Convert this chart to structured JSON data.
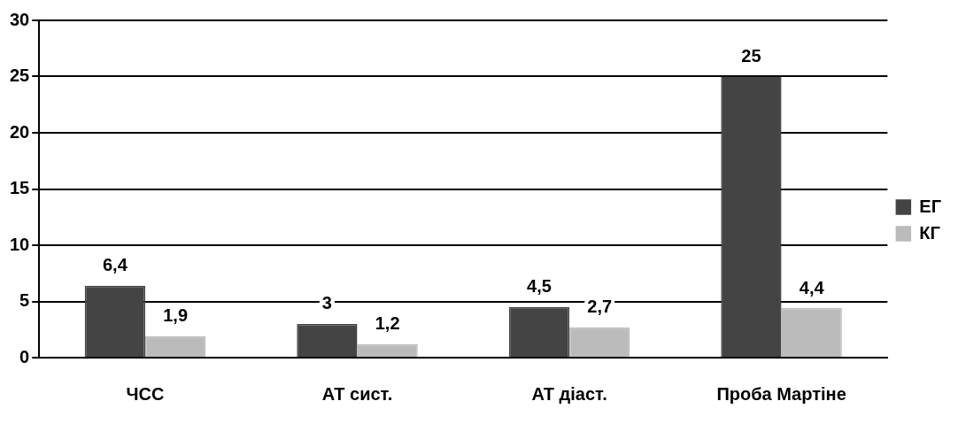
{
  "chart_data": {
    "type": "bar",
    "categories": [
      "ЧСС",
      "АТ сист.",
      "АТ діаст.",
      "Проба Мартіне"
    ],
    "series": [
      {
        "name": "ЕГ",
        "color": "#444444",
        "values": [
          6.4,
          3,
          4.5,
          25
        ],
        "value_labels": [
          "6,4",
          "3",
          "4,5",
          "25"
        ]
      },
      {
        "name": "КГ",
        "color": "#bbbbbb",
        "values": [
          1.9,
          1.2,
          2.7,
          4.4
        ],
        "value_labels": [
          "1,9",
          "1,2",
          "2,7",
          "4,4"
        ]
      }
    ],
    "ylim": [
      0,
      30
    ],
    "yticks": [
      0,
      5,
      10,
      15,
      20,
      25,
      30
    ],
    "grid": "y",
    "legend": "right"
  }
}
